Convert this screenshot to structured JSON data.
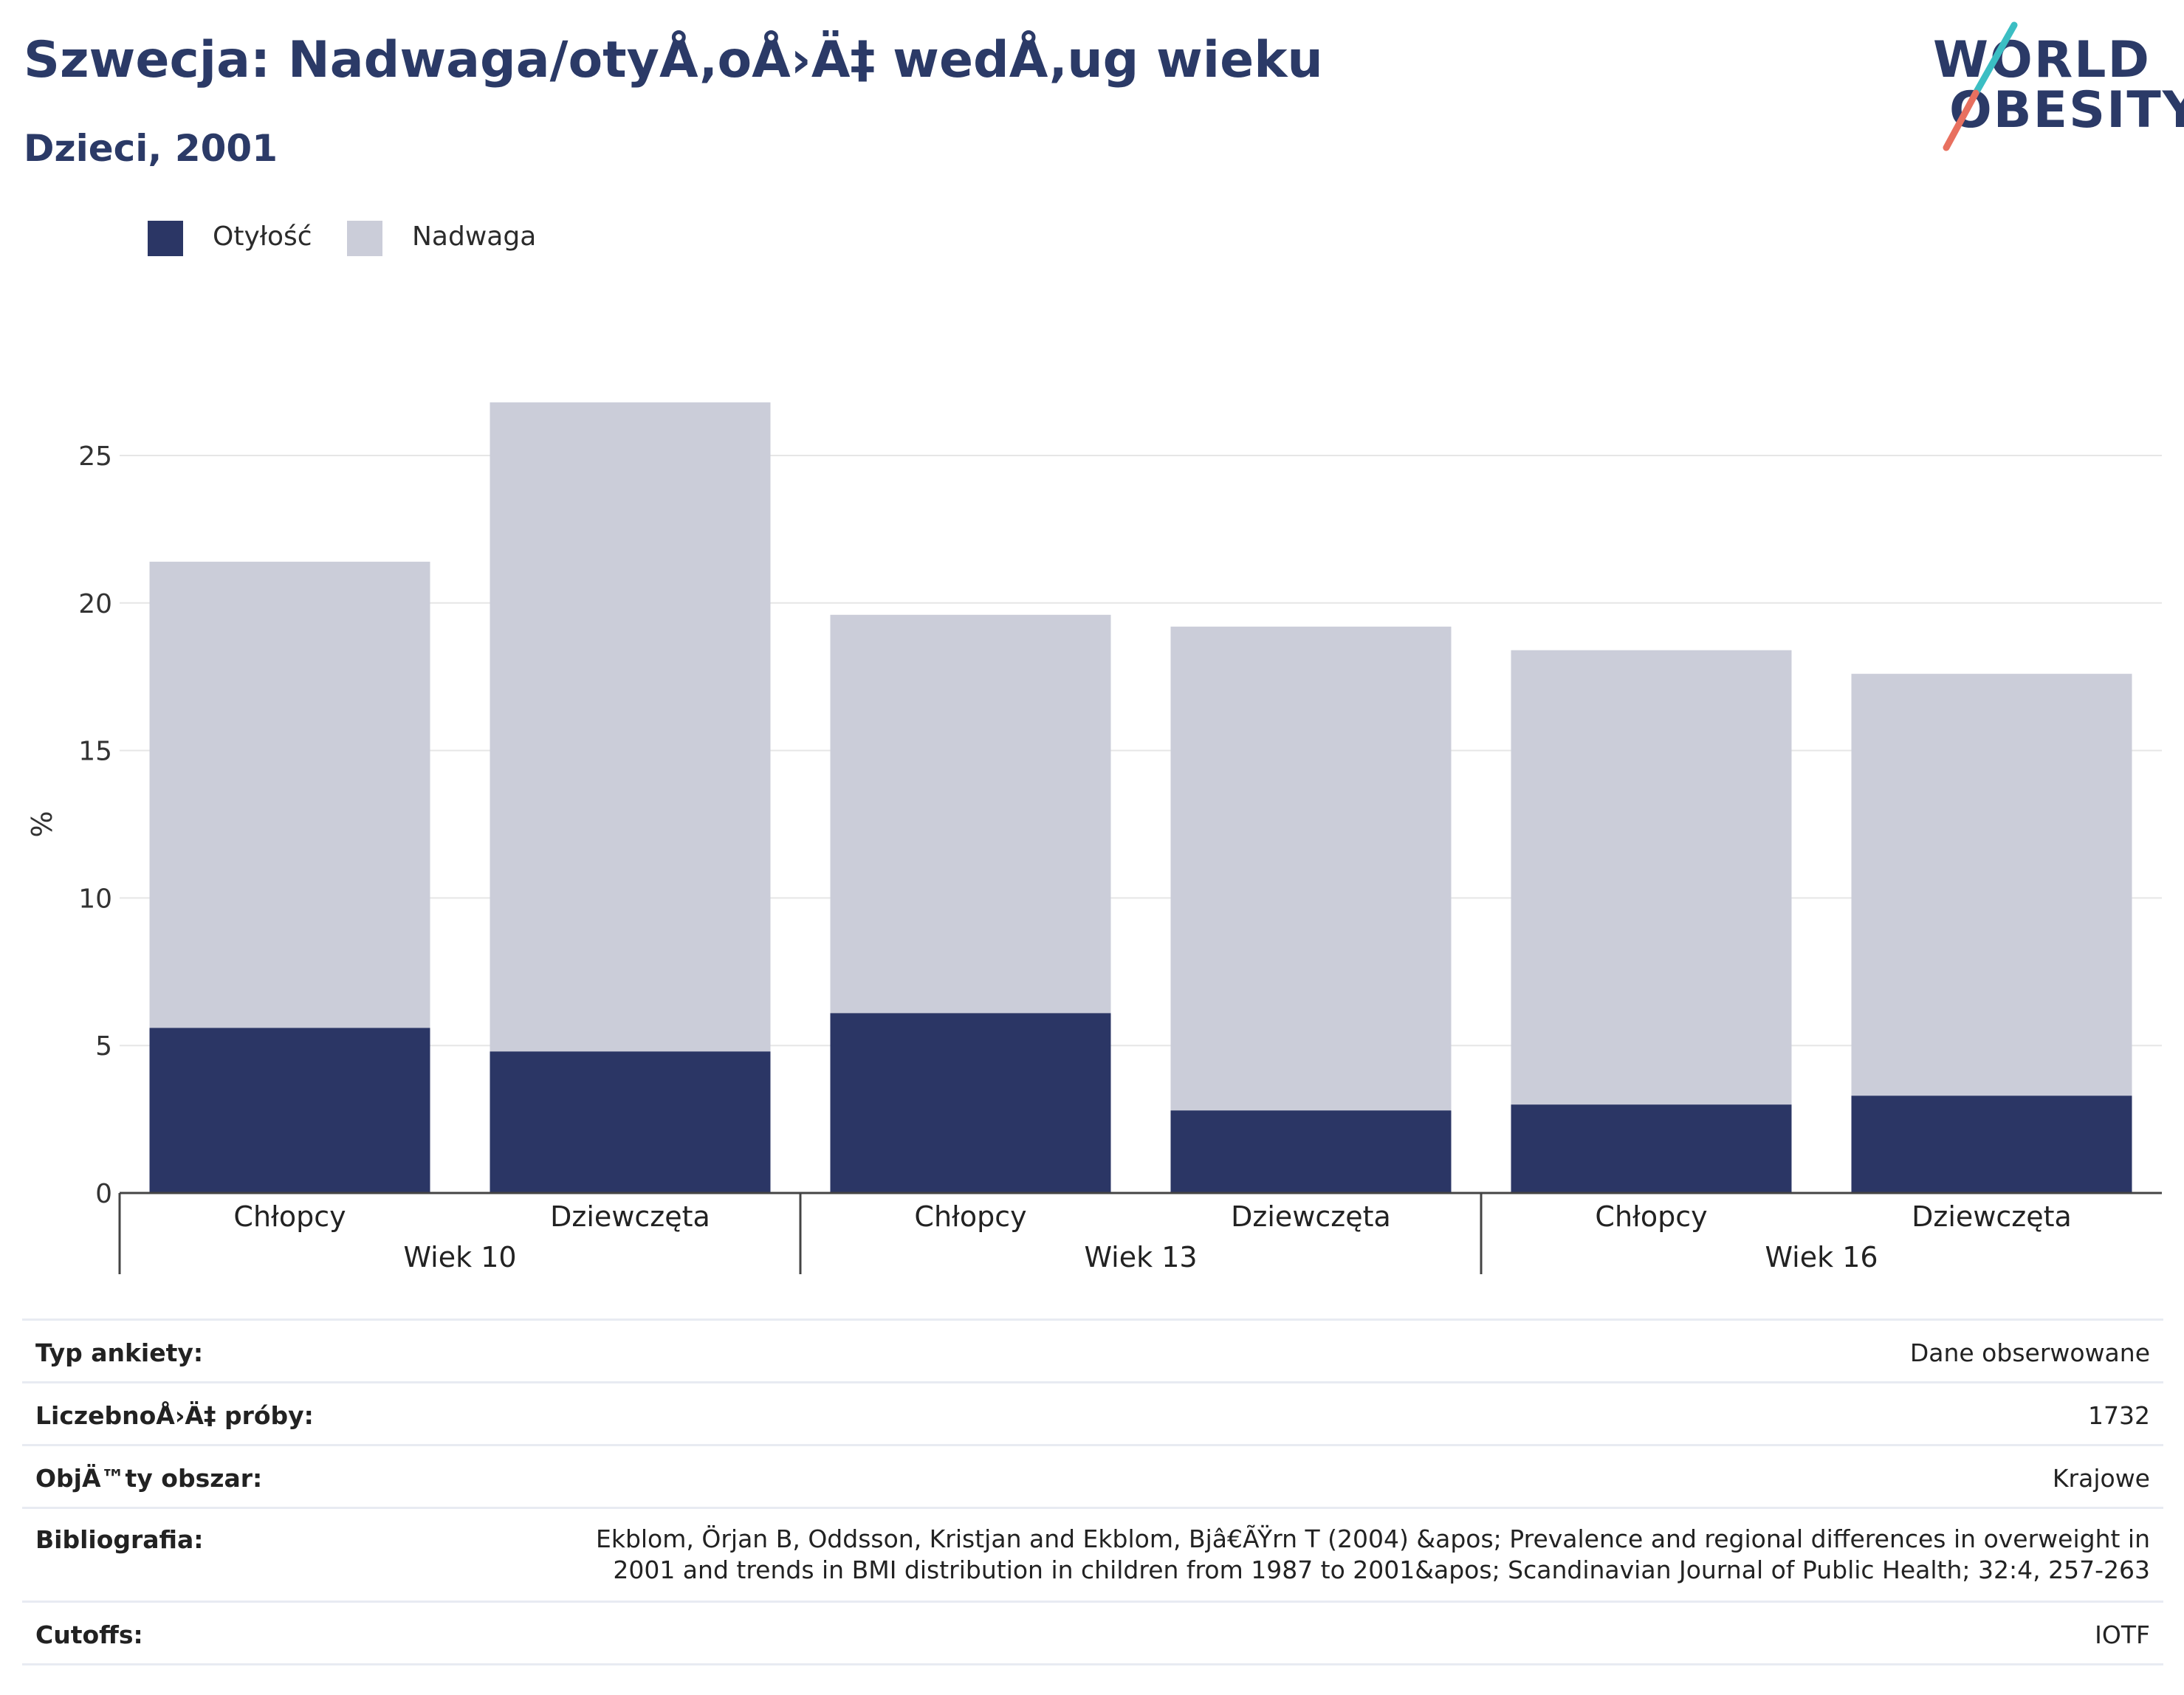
{
  "header": {
    "title": "Szwecja: Nadwaga/otyÅ‚oÅ›Ä‡ wedÅ‚ug wieku",
    "subtitle": "Dzieci, 2001"
  },
  "logo": {
    "line1": "WORLD",
    "line2": "OBESITY"
  },
  "legend": [
    {
      "label": "Otyłość",
      "color": "#2b3665"
    },
    {
      "label": "Nadwaga",
      "color": "#cbcdd9"
    }
  ],
  "chart_data": {
    "type": "bar",
    "stacked": true,
    "categories": [
      "Chłopcy",
      "Dziewczęta",
      "Chłopcy",
      "Dziewczęta",
      "Chłopcy",
      "Dziewczęta"
    ],
    "groups": [
      {
        "label": "Wiek 10",
        "span": 2
      },
      {
        "label": "Wiek 13",
        "span": 2
      },
      {
        "label": "Wiek 16",
        "span": 2
      }
    ],
    "series": [
      {
        "name": "Otyłość",
        "color": "#2b3665",
        "values": [
          5.6,
          4.8,
          6.1,
          2.8,
          3.0,
          3.3
        ]
      },
      {
        "name": "Nadwaga",
        "color": "#cbcdd9",
        "values": [
          15.8,
          22.0,
          13.5,
          16.4,
          15.4,
          14.3
        ]
      }
    ],
    "ylabel": "%",
    "xlabel": "",
    "ylim": [
      0,
      27.5
    ],
    "yticks": [
      0,
      5,
      10,
      15,
      20,
      25
    ],
    "grid": true,
    "legend_position": "top-left"
  },
  "meta": [
    {
      "key": "Typ ankiety:",
      "value": "Dane obserwowane"
    },
    {
      "key": "LiczebnoÅ›Ä‡ próby:",
      "value": "1732"
    },
    {
      "key": "ObjÄ™ty obszar:",
      "value": "Krajowe"
    },
    {
      "key": "Bibliografia:",
      "value": "Ekblom, Örjan B, Oddsson, Kristjan and Ekblom, Bjâ€ÃŸrn T (2004) &apos; Prevalence and regional differences in overweight in 2001 and trends in BMI distribution in children from 1987 to 2001&apos; Scandinavian Journal of Public Health; 32:4, 257-263"
    },
    {
      "key": "Cutoffs:",
      "value": "IOTF"
    }
  ]
}
